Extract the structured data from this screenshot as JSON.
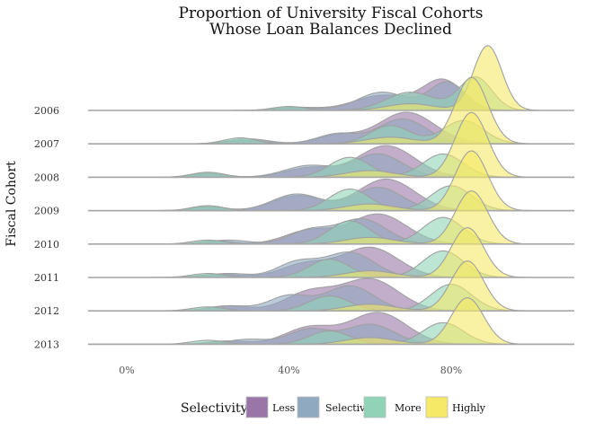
{
  "chart_data": {
    "type": "ridgeline",
    "title": [
      "Proportion of University Fiscal Cohorts",
      "Whose Loan Balances Declined"
    ],
    "ylabel": "Fiscal Cohort",
    "xlabel": "",
    "xlim": [
      -0.1,
      1.1
    ],
    "x_ticks": [
      {
        "value": 0.0,
        "label": "0%"
      },
      {
        "value": 0.4,
        "label": "40%"
      },
      {
        "value": 0.8,
        "label": "80%"
      }
    ],
    "categories": [
      "2006",
      "2007",
      "2008",
      "2009",
      "2010",
      "2011",
      "2012",
      "2013"
    ],
    "legend": {
      "title": "Selectivity:",
      "position": "bottom"
    },
    "series": [
      {
        "name": "Less",
        "color": "#9a76a8",
        "peaks": [
          [
            {
              "mu": 0.43,
              "s": 0.05,
              "h": 0.08
            },
            {
              "mu": 0.63,
              "s": 0.07,
              "h": 0.45
            },
            {
              "mu": 0.78,
              "s": 0.05,
              "h": 0.9
            }
          ],
          [
            {
              "mu": 0.3,
              "s": 0.05,
              "h": 0.1
            },
            {
              "mu": 0.52,
              "s": 0.05,
              "h": 0.25
            },
            {
              "mu": 0.69,
              "s": 0.07,
              "h": 0.95
            }
          ],
          [
            {
              "mu": 0.2,
              "s": 0.04,
              "h": 0.1
            },
            {
              "mu": 0.45,
              "s": 0.06,
              "h": 0.28
            },
            {
              "mu": 0.64,
              "s": 0.07,
              "h": 0.95
            }
          ],
          [
            {
              "mu": 0.2,
              "s": 0.04,
              "h": 0.1
            },
            {
              "mu": 0.42,
              "s": 0.06,
              "h": 0.45
            },
            {
              "mu": 0.64,
              "s": 0.07,
              "h": 0.95
            }
          ],
          [
            {
              "mu": 0.22,
              "s": 0.04,
              "h": 0.1
            },
            {
              "mu": 0.45,
              "s": 0.06,
              "h": 0.4
            },
            {
              "mu": 0.62,
              "s": 0.07,
              "h": 0.9
            }
          ],
          [
            {
              "mu": 0.23,
              "s": 0.05,
              "h": 0.1
            },
            {
              "mu": 0.44,
              "s": 0.06,
              "h": 0.4
            },
            {
              "mu": 0.6,
              "s": 0.07,
              "h": 0.9
            }
          ],
          [
            {
              "mu": 0.25,
              "s": 0.05,
              "h": 0.15
            },
            {
              "mu": 0.45,
              "s": 0.06,
              "h": 0.55
            },
            {
              "mu": 0.6,
              "s": 0.07,
              "h": 0.95
            }
          ],
          [
            {
              "mu": 0.25,
              "s": 0.05,
              "h": 0.1
            },
            {
              "mu": 0.45,
              "s": 0.06,
              "h": 0.5
            },
            {
              "mu": 0.62,
              "s": 0.07,
              "h": 0.95
            }
          ]
        ]
      },
      {
        "name": "Selective",
        "color": "#8fa9c0",
        "peaks": [
          [
            {
              "mu": 0.42,
              "s": 0.05,
              "h": 0.1
            },
            {
              "mu": 0.63,
              "s": 0.06,
              "h": 0.55
            },
            {
              "mu": 0.79,
              "s": 0.045,
              "h": 0.85
            }
          ],
          [
            {
              "mu": 0.3,
              "s": 0.05,
              "h": 0.15
            },
            {
              "mu": 0.52,
              "s": 0.05,
              "h": 0.3
            },
            {
              "mu": 0.68,
              "s": 0.06,
              "h": 0.75
            }
          ],
          [
            {
              "mu": 0.2,
              "s": 0.04,
              "h": 0.12
            },
            {
              "mu": 0.45,
              "s": 0.06,
              "h": 0.35
            },
            {
              "mu": 0.62,
              "s": 0.06,
              "h": 0.7
            }
          ],
          [
            {
              "mu": 0.2,
              "s": 0.04,
              "h": 0.12
            },
            {
              "mu": 0.42,
              "s": 0.06,
              "h": 0.5
            },
            {
              "mu": 0.62,
              "s": 0.06,
              "h": 0.7
            }
          ],
          [
            {
              "mu": 0.25,
              "s": 0.05,
              "h": 0.12
            },
            {
              "mu": 0.45,
              "s": 0.05,
              "h": 0.4
            },
            {
              "mu": 0.58,
              "s": 0.06,
              "h": 0.75
            }
          ],
          [
            {
              "mu": 0.25,
              "s": 0.05,
              "h": 0.12
            },
            {
              "mu": 0.42,
              "s": 0.05,
              "h": 0.45
            },
            {
              "mu": 0.55,
              "s": 0.06,
              "h": 0.75
            }
          ],
          [
            {
              "mu": 0.25,
              "s": 0.05,
              "h": 0.15
            },
            {
              "mu": 0.4,
              "s": 0.05,
              "h": 0.45
            },
            {
              "mu": 0.55,
              "s": 0.06,
              "h": 0.75
            }
          ],
          [
            {
              "mu": 0.3,
              "s": 0.05,
              "h": 0.15
            },
            {
              "mu": 0.45,
              "s": 0.05,
              "h": 0.45
            },
            {
              "mu": 0.6,
              "s": 0.06,
              "h": 0.6
            }
          ]
        ]
      },
      {
        "name": "More",
        "color": "#8fd4b7",
        "peaks": [
          [
            {
              "mu": 0.4,
              "s": 0.04,
              "h": 0.12
            },
            {
              "mu": 0.7,
              "s": 0.06,
              "h": 0.55
            },
            {
              "mu": 0.86,
              "s": 0.04,
              "h": 1.0
            }
          ],
          [
            {
              "mu": 0.28,
              "s": 0.04,
              "h": 0.18
            },
            {
              "mu": 0.65,
              "s": 0.05,
              "h": 0.55
            },
            {
              "mu": 0.83,
              "s": 0.05,
              "h": 0.7
            }
          ],
          [
            {
              "mu": 0.2,
              "s": 0.04,
              "h": 0.15
            },
            {
              "mu": 0.55,
              "s": 0.05,
              "h": 0.6
            },
            {
              "mu": 0.78,
              "s": 0.05,
              "h": 0.7
            }
          ],
          [
            {
              "mu": 0.2,
              "s": 0.04,
              "h": 0.15
            },
            {
              "mu": 0.55,
              "s": 0.05,
              "h": 0.65
            },
            {
              "mu": 0.8,
              "s": 0.05,
              "h": 0.75
            }
          ],
          [
            {
              "mu": 0.2,
              "s": 0.04,
              "h": 0.12
            },
            {
              "mu": 0.55,
              "s": 0.05,
              "h": 0.7
            },
            {
              "mu": 0.78,
              "s": 0.05,
              "h": 0.8
            }
          ],
          [
            {
              "mu": 0.2,
              "s": 0.04,
              "h": 0.12
            },
            {
              "mu": 0.5,
              "s": 0.05,
              "h": 0.55
            },
            {
              "mu": 0.78,
              "s": 0.05,
              "h": 0.8
            }
          ],
          [
            {
              "mu": 0.2,
              "s": 0.04,
              "h": 0.12
            },
            {
              "mu": 0.5,
              "s": 0.05,
              "h": 0.45
            },
            {
              "mu": 0.8,
              "s": 0.05,
              "h": 0.8
            }
          ],
          [
            {
              "mu": 0.2,
              "s": 0.04,
              "h": 0.12
            },
            {
              "mu": 0.5,
              "s": 0.05,
              "h": 0.4
            },
            {
              "mu": 0.78,
              "s": 0.05,
              "h": 0.65
            }
          ]
        ]
      },
      {
        "name": "Highly",
        "color": "#f5e967",
        "peaks": [
          [
            {
              "mu": 0.7,
              "s": 0.06,
              "h": 0.2
            },
            {
              "mu": 0.89,
              "s": 0.035,
              "h": 1.95
            }
          ],
          [
            {
              "mu": 0.65,
              "s": 0.06,
              "h": 0.2
            },
            {
              "mu": 0.85,
              "s": 0.04,
              "h": 2.0
            }
          ],
          [
            {
              "mu": 0.6,
              "s": 0.06,
              "h": 0.2
            },
            {
              "mu": 0.85,
              "s": 0.04,
              "h": 1.95
            }
          ],
          [
            {
              "mu": 0.6,
              "s": 0.06,
              "h": 0.2
            },
            {
              "mu": 0.85,
              "s": 0.04,
              "h": 1.8
            }
          ],
          [
            {
              "mu": 0.6,
              "s": 0.06,
              "h": 0.2
            },
            {
              "mu": 0.85,
              "s": 0.04,
              "h": 1.6
            }
          ],
          [
            {
              "mu": 0.6,
              "s": 0.06,
              "h": 0.2
            },
            {
              "mu": 0.84,
              "s": 0.04,
              "h": 1.5
            }
          ],
          [
            {
              "mu": 0.6,
              "s": 0.06,
              "h": 0.2
            },
            {
              "mu": 0.84,
              "s": 0.04,
              "h": 1.5
            }
          ],
          [
            {
              "mu": 0.6,
              "s": 0.06,
              "h": 0.2
            },
            {
              "mu": 0.84,
              "s": 0.04,
              "h": 1.4
            }
          ]
        ]
      }
    ]
  }
}
